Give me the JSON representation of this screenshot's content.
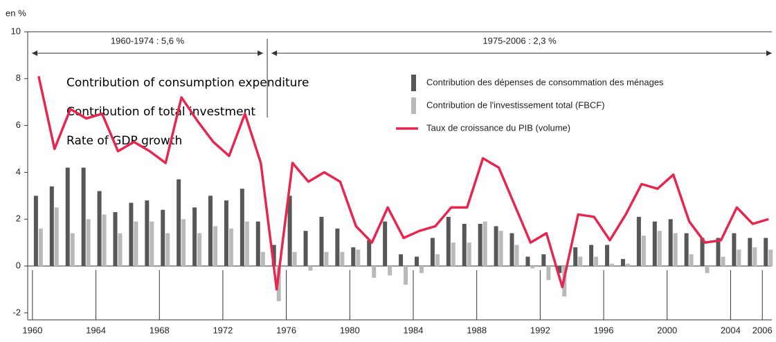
{
  "chart_data": {
    "type": "bar_line",
    "y_unit_label": "en %",
    "periods": [
      "1960-1974 : 5,6 %",
      "1975-2006 : 2,3 %"
    ],
    "annotations": [
      "Contribution of consumption expenditure",
      "Contribution of total investment",
      "Rate of GDP growth"
    ],
    "x": [
      1960,
      1961,
      1962,
      1963,
      1964,
      1965,
      1966,
      1967,
      1968,
      1969,
      1970,
      1971,
      1972,
      1973,
      1974,
      1975,
      1976,
      1977,
      1978,
      1979,
      1980,
      1981,
      1982,
      1983,
      1984,
      1985,
      1986,
      1987,
      1988,
      1989,
      1990,
      1991,
      1992,
      1993,
      1994,
      1995,
      1996,
      1997,
      1998,
      1999,
      2000,
      2001,
      2002,
      2003,
      2004,
      2005,
      2006
    ],
    "series": [
      {
        "name": "Contribution des dépenses de consommation des ménages",
        "color": "#575757",
        "kind": "bar",
        "values": [
          3.0,
          3.4,
          4.2,
          4.2,
          3.2,
          2.3,
          2.7,
          2.8,
          2.4,
          3.7,
          2.5,
          3.0,
          2.8,
          3.3,
          1.9,
          0.9,
          3.0,
          1.5,
          2.1,
          1.6,
          0.8,
          1.1,
          1.9,
          0.5,
          0.4,
          1.2,
          2.1,
          1.8,
          1.8,
          1.7,
          1.4,
          0.4,
          0.5,
          -0.3,
          0.8,
          0.9,
          0.9,
          0.3,
          2.1,
          1.9,
          2.0,
          1.4,
          1.2,
          1.2,
          1.4,
          1.2,
          1.2
        ]
      },
      {
        "name": "Contribution de l'investissement total (FBCF)",
        "color": "#b9b9b9",
        "kind": "bar",
        "values": [
          1.6,
          2.5,
          1.4,
          2.0,
          2.2,
          1.4,
          1.9,
          1.9,
          1.4,
          2.0,
          1.4,
          1.7,
          1.6,
          1.9,
          0.6,
          -1.5,
          0.6,
          -0.2,
          0.6,
          0.6,
          0.7,
          -0.5,
          -0.4,
          -0.8,
          -0.3,
          0.5,
          1.0,
          1.0,
          1.9,
          1.5,
          0.9,
          -0.1,
          -0.6,
          -1.3,
          0.4,
          0.4,
          0.1,
          0.1,
          1.3,
          1.5,
          1.4,
          0.5,
          -0.3,
          0.4,
          0.7,
          0.8,
          0.7
        ]
      },
      {
        "name": "Taux de croissance du PIB (volume)",
        "color": "#e8254f",
        "kind": "line",
        "values": [
          8.1,
          5.0,
          6.7,
          6.3,
          6.5,
          4.9,
          5.3,
          4.9,
          4.4,
          7.2,
          6.2,
          5.3,
          4.7,
          6.5,
          4.4,
          -1.0,
          4.4,
          3.6,
          4.0,
          3.6,
          1.7,
          1.0,
          2.5,
          1.2,
          1.5,
          1.7,
          2.5,
          2.5,
          4.6,
          4.2,
          2.6,
          1.0,
          1.4,
          -0.9,
          2.2,
          2.1,
          1.1,
          2.2,
          3.5,
          3.3,
          3.9,
          1.9,
          1.0,
          1.1,
          2.5,
          1.8,
          2.0
        ]
      }
    ],
    "xlim": [
      1959.7,
      2006.6
    ],
    "xticks": [
      1960,
      1964,
      1968,
      1972,
      1976,
      1980,
      1984,
      1988,
      1992,
      1996,
      2000,
      2004,
      2006
    ],
    "ylim": [
      -2.3,
      10
    ],
    "yticks": [
      -2,
      0,
      2,
      4,
      6,
      8,
      10
    ],
    "grid": false
  }
}
